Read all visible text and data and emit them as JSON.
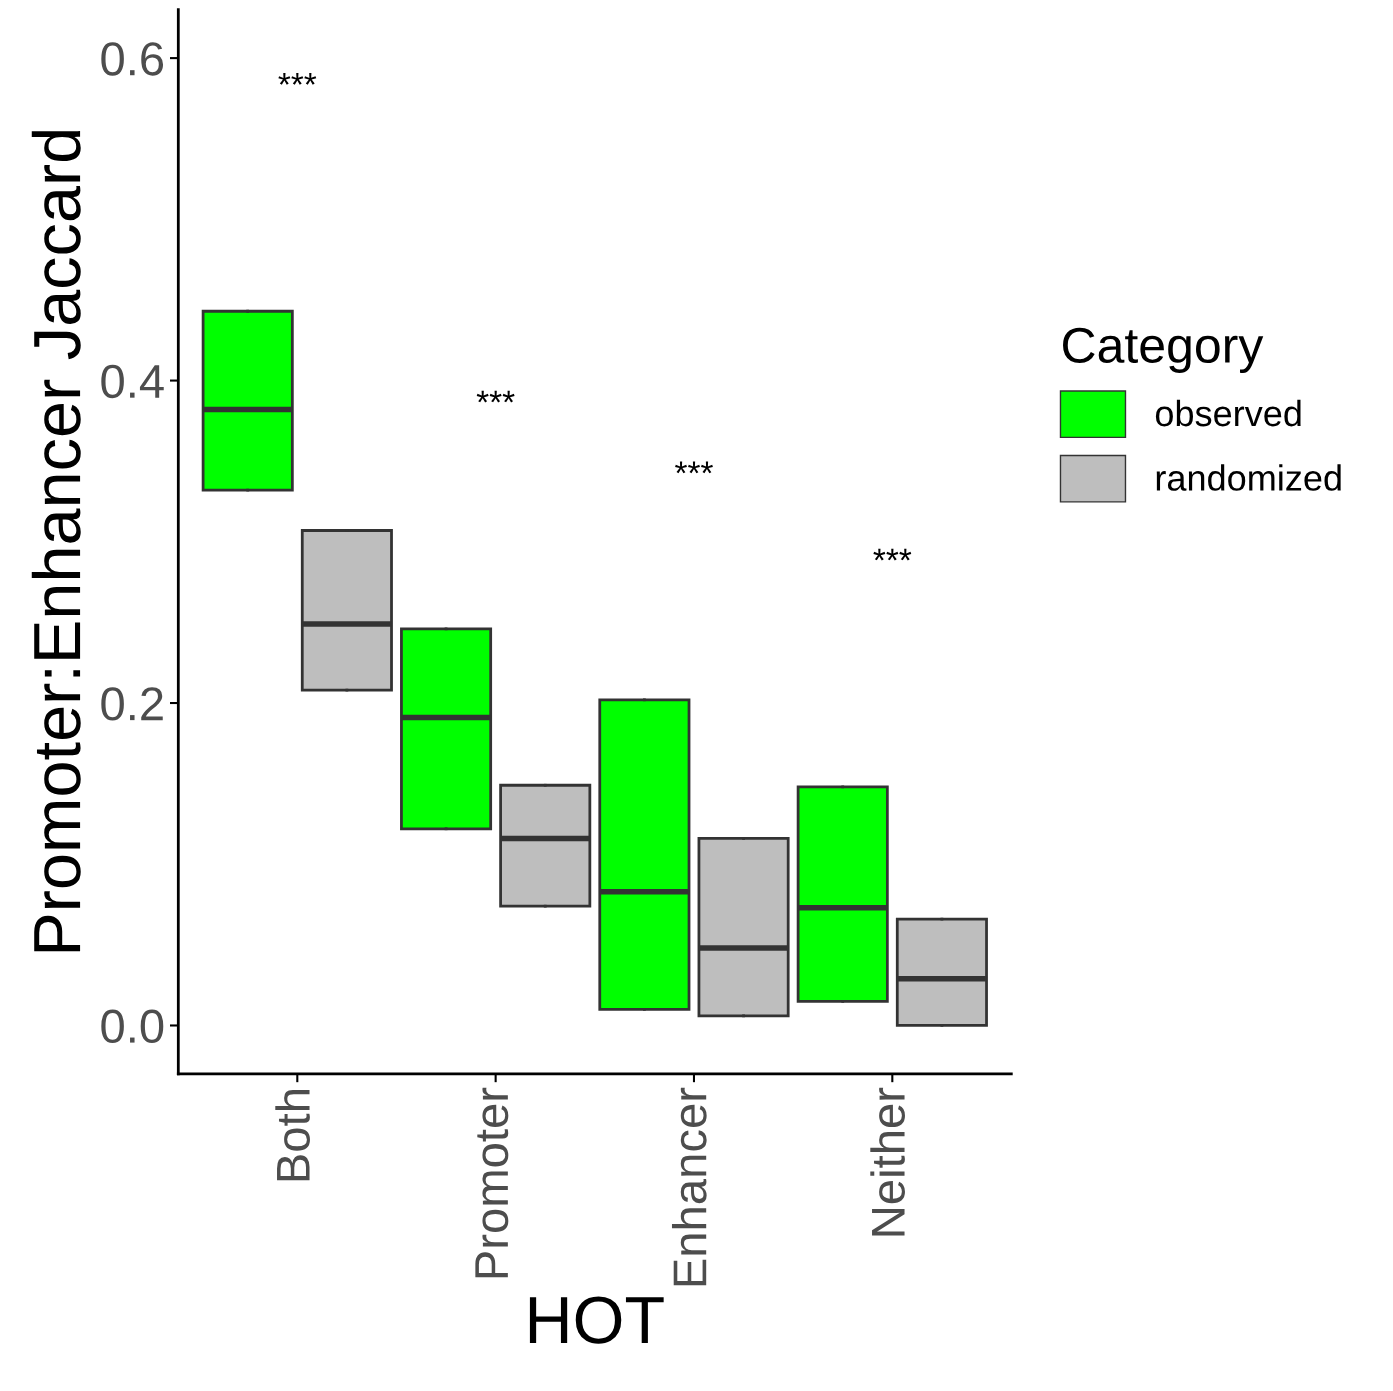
{
  "chart_data": {
    "type": "box",
    "xlabel": "HOT",
    "ylabel": "Promoter:Enhancer Jaccard",
    "legend_title": "Category",
    "categories": [
      "Both",
      "Promoter",
      "Enhancer",
      "Neither"
    ],
    "ylim": [
      -0.03,
      0.63
    ],
    "yticks": [
      {
        "value": 0,
        "label": "0.0"
      },
      0.2,
      0.4,
      0.6
    ],
    "grid": false,
    "legend": "right",
    "series": [
      {
        "name": "observed",
        "color": "#00ff00",
        "boxes": [
          {
            "low": 0.332,
            "q1": 0.332,
            "median": 0.382,
            "q3": 0.443,
            "high": 0.443
          },
          {
            "low": 0.122,
            "q1": 0.122,
            "median": 0.191,
            "q3": 0.246,
            "high": 0.246
          },
          {
            "low": 0.01,
            "q1": 0.01,
            "median": 0.083,
            "q3": 0.202,
            "high": 0.202
          },
          {
            "low": 0.015,
            "q1": 0.015,
            "median": 0.073,
            "q3": 0.148,
            "high": 0.148
          }
        ]
      },
      {
        "name": "randomized",
        "color": "#bebebe",
        "boxes": [
          {
            "low": 0.208,
            "q1": 0.208,
            "median": 0.249,
            "q3": 0.307,
            "high": 0.307
          },
          {
            "low": 0.074,
            "q1": 0.074,
            "median": 0.116,
            "q3": 0.149,
            "high": 0.149
          },
          {
            "low": 0.006,
            "q1": 0.006,
            "median": 0.048,
            "q3": 0.116,
            "high": 0.116
          },
          {
            "low": 0.0,
            "q1": 0.0,
            "median": 0.029,
            "q3": 0.066,
            "high": 0.066
          }
        ]
      }
    ],
    "annotations": [
      "***",
      "***",
      "***",
      "***"
    ]
  }
}
